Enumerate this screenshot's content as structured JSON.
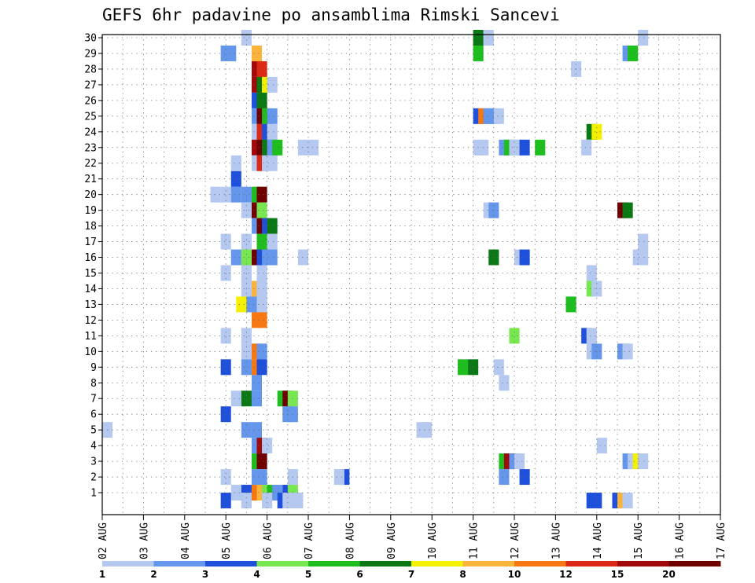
{
  "chart_data": {
    "type": "heatmap",
    "title": "GEFS 6hr padavine po ansamblima Rimski Sancevi",
    "xlabel": "",
    "ylabel": "",
    "x_tick_labels": [
      "02 AUG",
      "03 AUG",
      "04 AUG",
      "05 AUG",
      "06 AUG",
      "07 AUG",
      "08 AUG",
      "09 AUG",
      "10 AUG",
      "11 AUG",
      "12 AUG",
      "13 AUG",
      "14 AUG",
      "15 AUG",
      "16 AUG",
      "17 AUG"
    ],
    "y_tick_labels": [
      "1",
      "2",
      "3",
      "4",
      "5",
      "6",
      "7",
      "8",
      "9",
      "10",
      "11",
      "12",
      "13",
      "14",
      "15",
      "16",
      "17",
      "18",
      "19",
      "20",
      "21",
      "22",
      "23",
      "24",
      "25",
      "26",
      "27",
      "28",
      "29",
      "30"
    ],
    "x_range_days": [
      0,
      15
    ],
    "y_range": [
      0,
      30
    ],
    "grid": true,
    "value_unit": "precipitation class (colorbar 1..20)",
    "legend": {
      "placement": "bottom",
      "colors": [
        "#b4c8f0",
        "#6496eb",
        "#1e50dc",
        "#78e650",
        "#1ebe1e",
        "#0a7814",
        "#f5f000",
        "#fab43c",
        "#f57814",
        "#dc2814",
        "#a00a0a",
        "#6e0000"
      ],
      "labels": [
        "1",
        "2",
        "3",
        "4",
        "5",
        "6",
        "7",
        "8",
        "10",
        "12",
        "15",
        "20"
      ]
    },
    "classes_note": "cell values are colorbar class indexes 1..12 (1=lightest blue ... 12=dark maroon)",
    "cells": [
      [
        0.125,
        5,
        1
      ],
      [
        3,
        29,
        2
      ],
      [
        3.125,
        29,
        2
      ],
      [
        3,
        20,
        1
      ],
      [
        3,
        17,
        1
      ],
      [
        3,
        15,
        1
      ],
      [
        3,
        11,
        1
      ],
      [
        3,
        9,
        3
      ],
      [
        3,
        6,
        3
      ],
      [
        3,
        2,
        1
      ],
      [
        3.25,
        20,
        2
      ],
      [
        3.25,
        21,
        3
      ],
      [
        3.25,
        22,
        1
      ],
      [
        3.25,
        16,
        2
      ],
      [
        3.25,
        7,
        1
      ],
      [
        3.25,
        1,
        1
      ],
      [
        2.75,
        20,
        1
      ],
      [
        3.5,
        30,
        1
      ],
      [
        3.75,
        29,
        8
      ],
      [
        3.75,
        28,
        11
      ],
      [
        3.75,
        27,
        11
      ],
      [
        3.75,
        26,
        3
      ],
      [
        3.75,
        25,
        2
      ],
      [
        3.75,
        24,
        1
      ],
      [
        3.75,
        23,
        11
      ],
      [
        3.75,
        22,
        1
      ],
      [
        3.75,
        20,
        5
      ],
      [
        3.75,
        19,
        12
      ],
      [
        3.75,
        18,
        2
      ],
      [
        3.75,
        16,
        12
      ],
      [
        3.75,
        14,
        8
      ],
      [
        3.75,
        13,
        2
      ],
      [
        3.75,
        12,
        9
      ],
      [
        3.75,
        10,
        9
      ],
      [
        3.75,
        9,
        9
      ],
      [
        3.75,
        8,
        2
      ],
      [
        3.75,
        7,
        2
      ],
      [
        3.75,
        5,
        2
      ],
      [
        3.75,
        4,
        2
      ],
      [
        3.75,
        3,
        5
      ],
      [
        3.75,
        2,
        2
      ],
      [
        3.75,
        1,
        9
      ],
      [
        3.5,
        20,
        2
      ],
      [
        3.5,
        19,
        1
      ],
      [
        3.5,
        17,
        1
      ],
      [
        3.5,
        16,
        4
      ],
      [
        3.5,
        15,
        1
      ],
      [
        3.5,
        14,
        1
      ],
      [
        3.5,
        13,
        2
      ],
      [
        3.5,
        11,
        1
      ],
      [
        3.5,
        10,
        1
      ],
      [
        3.5,
        9,
        2
      ],
      [
        3.5,
        7,
        6
      ],
      [
        3.5,
        5,
        2
      ],
      [
        3.5,
        1,
        3
      ],
      [
        3.375,
        13,
        7
      ],
      [
        3.875,
        28,
        10
      ],
      [
        3.875,
        27,
        6
      ],
      [
        3.875,
        26,
        6
      ],
      [
        3.875,
        25,
        12
      ],
      [
        3.875,
        24,
        10
      ],
      [
        3.875,
        23,
        12
      ],
      [
        3.875,
        22,
        10
      ],
      [
        3.875,
        20,
        12
      ],
      [
        3.875,
        19,
        4
      ],
      [
        3.875,
        18,
        12
      ],
      [
        3.875,
        17,
        5
      ],
      [
        3.875,
        16,
        3
      ],
      [
        3.875,
        15,
        1
      ],
      [
        3.875,
        14,
        1
      ],
      [
        3.875,
        13,
        1
      ],
      [
        3.875,
        12,
        9
      ],
      [
        3.875,
        10,
        2
      ],
      [
        3.875,
        9,
        3
      ],
      [
        3.875,
        4,
        11
      ],
      [
        3.875,
        3,
        12
      ],
      [
        3.875,
        2,
        2
      ],
      [
        3.875,
        1,
        8
      ],
      [
        4,
        27,
        7
      ],
      [
        4,
        25,
        5
      ],
      [
        4,
        24,
        3
      ],
      [
        4,
        23,
        6
      ],
      [
        4,
        22,
        1
      ],
      [
        4,
        18,
        3
      ],
      [
        4,
        16,
        2
      ],
      [
        4,
        4,
        1
      ],
      [
        4,
        1,
        4
      ],
      [
        4.125,
        27,
        1
      ],
      [
        4.125,
        25,
        2
      ],
      [
        4.125,
        24,
        1
      ],
      [
        4.125,
        23,
        2
      ],
      [
        4.125,
        22,
        1
      ],
      [
        4.125,
        18,
        6
      ],
      [
        4.125,
        17,
        1
      ],
      [
        4.125,
        16,
        2
      ],
      [
        4.125,
        1,
        5
      ],
      [
        4.25,
        23,
        5
      ],
      [
        4.25,
        1,
        2
      ],
      [
        4.375,
        7,
        5
      ],
      [
        4.5,
        7,
        12
      ],
      [
        4.5,
        6,
        2
      ],
      [
        4.5,
        1,
        3
      ],
      [
        4.625,
        7,
        4
      ],
      [
        4.625,
        6,
        2
      ],
      [
        4.625,
        1,
        4
      ],
      [
        4.625,
        2,
        1
      ],
      [
        4.875,
        16,
        1
      ],
      [
        5.125,
        23,
        1
      ],
      [
        4.875,
        23,
        1
      ],
      [
        5.875,
        2,
        3
      ],
      [
        5.75,
        2,
        1
      ],
      [
        7.75,
        5,
        1
      ],
      [
        7.875,
        5,
        1
      ],
      [
        9.125,
        30,
        6
      ],
      [
        9.125,
        29,
        5
      ],
      [
        9.375,
        30,
        1
      ],
      [
        8.75,
        9,
        5
      ],
      [
        9,
        9,
        6
      ],
      [
        9.125,
        25,
        3
      ],
      [
        9.25,
        25,
        9
      ],
      [
        9.375,
        25,
        2
      ],
      [
        9.5,
        25,
        2
      ],
      [
        9.625,
        25,
        1
      ],
      [
        9.125,
        23,
        1
      ],
      [
        9.25,
        23,
        1
      ],
      [
        9.375,
        19,
        1
      ],
      [
        9.5,
        19,
        2
      ],
      [
        9.5,
        16,
        6
      ],
      [
        9.625,
        9,
        1
      ],
      [
        9.75,
        8,
        1
      ],
      [
        9.75,
        23,
        2
      ],
      [
        9.875,
        23,
        5
      ],
      [
        10,
        23,
        1
      ],
      [
        10.125,
        23,
        1
      ],
      [
        10.25,
        23,
        3
      ],
      [
        10.625,
        23,
        5
      ],
      [
        9.75,
        3,
        5
      ],
      [
        9.875,
        3,
        11
      ],
      [
        10,
        3,
        2
      ],
      [
        10.125,
        3,
        1
      ],
      [
        9.75,
        2,
        2
      ],
      [
        10.125,
        16,
        1
      ],
      [
        10.25,
        16,
        3
      ],
      [
        10,
        11,
        4
      ],
      [
        10.25,
        2,
        3
      ],
      [
        11.5,
        28,
        1
      ],
      [
        11.375,
        13,
        5
      ],
      [
        11.875,
        24,
        6
      ],
      [
        12,
        24,
        7
      ],
      [
        11.75,
        23,
        1
      ],
      [
        11.75,
        11,
        3
      ],
      [
        11.875,
        11,
        1
      ],
      [
        11.875,
        10,
        1
      ],
      [
        12,
        10,
        2
      ],
      [
        11.875,
        15,
        1
      ],
      [
        11.875,
        14,
        4
      ],
      [
        12,
        14,
        1
      ],
      [
        12.125,
        4,
        1
      ],
      [
        12.625,
        19,
        12
      ],
      [
        12.75,
        19,
        6
      ],
      [
        12.75,
        29,
        2
      ],
      [
        12.875,
        29,
        5
      ],
      [
        12.625,
        10,
        2
      ],
      [
        12.75,
        10,
        1
      ],
      [
        12.75,
        3,
        2
      ],
      [
        12.875,
        3,
        1
      ],
      [
        13,
        3,
        7
      ],
      [
        13.125,
        3,
        1
      ],
      [
        13.125,
        17,
        1
      ],
      [
        13,
        16,
        1
      ],
      [
        13.125,
        16,
        1
      ],
      [
        13.125,
        30,
        1
      ],
      [
        11.875,
        0.5,
        3
      ],
      [
        12,
        0.5,
        3
      ],
      [
        12.5,
        0.5,
        3
      ],
      [
        12.625,
        0.5,
        8
      ],
      [
        12.75,
        0.5,
        1
      ],
      [
        3.5,
        0.5,
        1
      ],
      [
        3,
        0.5,
        3
      ],
      [
        4,
        0.5,
        1
      ],
      [
        4.375,
        0.5,
        3
      ],
      [
        4.5,
        0.5,
        1
      ],
      [
        4.625,
        0.5,
        1
      ],
      [
        4.75,
        0.5,
        1
      ]
    ]
  }
}
